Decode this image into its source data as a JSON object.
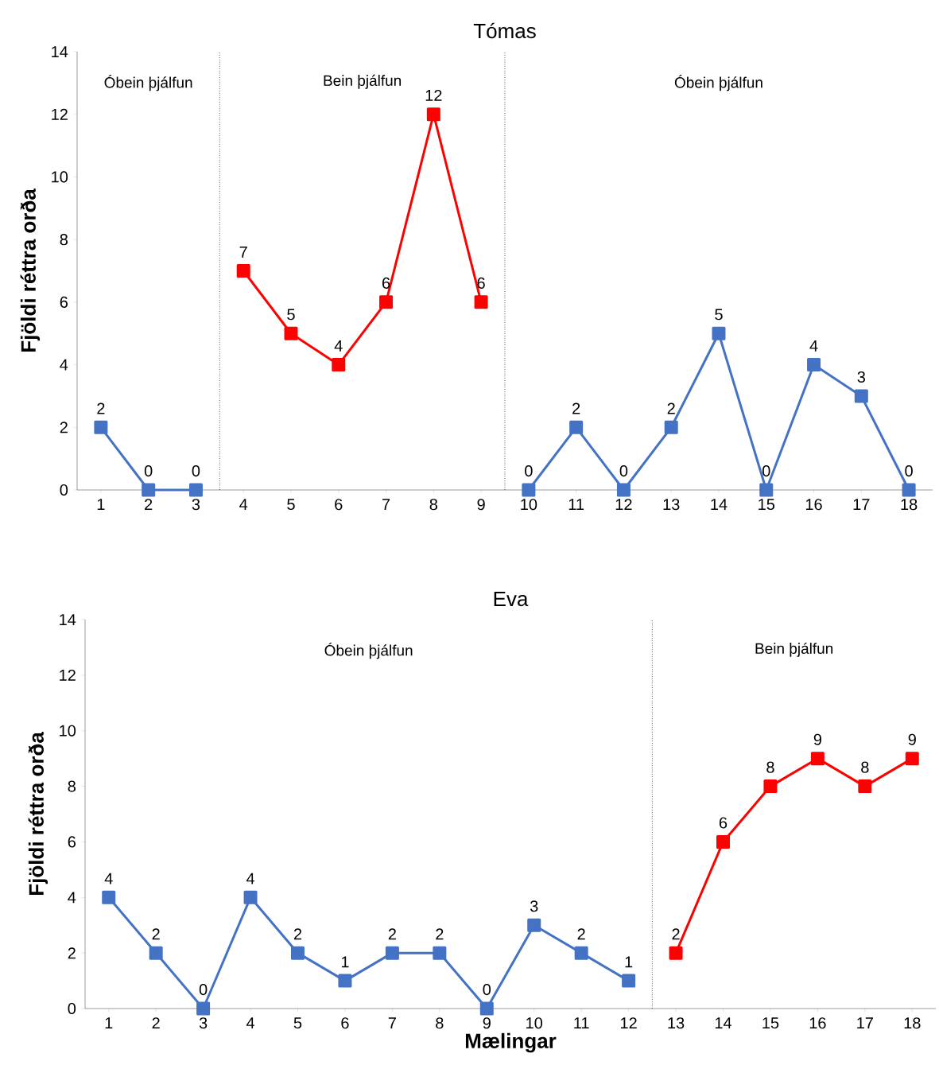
{
  "chart_data": [
    {
      "type": "line",
      "title": "Tómas",
      "ylabel": "Fjöldi réttra orða",
      "x": [
        1,
        2,
        3,
        4,
        5,
        6,
        7,
        8,
        9,
        10,
        11,
        12,
        13,
        14,
        15,
        16,
        17,
        18
      ],
      "series": [
        {
          "color": "#4472c4",
          "values": [
            2,
            0,
            0,
            null,
            null,
            null,
            null,
            null,
            null,
            0,
            2,
            0,
            2,
            5,
            0,
            4,
            3,
            0
          ]
        },
        {
          "color": "#ff0000",
          "values": [
            null,
            null,
            null,
            7,
            5,
            4,
            6,
            12,
            6,
            null,
            null,
            null,
            null,
            null,
            null,
            null,
            null,
            null
          ]
        }
      ],
      "xlim": [
        0.5,
        18.5
      ],
      "xticks": [
        1,
        2,
        3,
        4,
        5,
        6,
        7,
        8,
        9,
        10,
        11,
        12,
        13,
        14,
        15,
        16,
        17,
        18
      ],
      "ylim": [
        0,
        14
      ],
      "yticks": [
        0,
        2,
        4,
        6,
        8,
        10,
        12,
        14
      ],
      "marker": "square",
      "line_style": "solid",
      "data_labels": true,
      "grid": false,
      "ref_lines": [
        {
          "axis": "x",
          "value": 3.5,
          "color": "#000000",
          "line_style": "dotted"
        },
        {
          "axis": "x",
          "value": 9.5,
          "color": "#000000",
          "line_style": "dotted"
        }
      ],
      "annotations": [
        "Óbein þjálfun",
        "Bein þjálfun",
        "Óbein þjálfun"
      ]
    },
    {
      "type": "line",
      "title": "Eva",
      "xlabel": "Mælingar",
      "ylabel": "Fjöldi réttra orða",
      "x": [
        1,
        2,
        3,
        4,
        5,
        6,
        7,
        8,
        9,
        10,
        11,
        12,
        13,
        14,
        15,
        16,
        17,
        18
      ],
      "series": [
        {
          "color": "#4472c4",
          "values": [
            4,
            2,
            0,
            4,
            2,
            1,
            2,
            2,
            0,
            3,
            2,
            1,
            null,
            null,
            null,
            null,
            null,
            null
          ]
        },
        {
          "color": "#ff0000",
          "values": [
            null,
            null,
            null,
            null,
            null,
            null,
            null,
            null,
            null,
            null,
            null,
            null,
            2,
            6,
            8,
            9,
            8,
            9
          ]
        }
      ],
      "xlim": [
        0.5,
        18.5
      ],
      "xticks": [
        1,
        2,
        3,
        4,
        5,
        6,
        7,
        8,
        9,
        10,
        11,
        12,
        13,
        14,
        15,
        16,
        17,
        18
      ],
      "ylim": [
        0,
        14
      ],
      "yticks": [
        0,
        2,
        4,
        6,
        8,
        10,
        12,
        14
      ],
      "marker": "square",
      "line_style": "solid",
      "data_labels": true,
      "grid": false,
      "ref_lines": [
        {
          "axis": "x",
          "value": 12.5,
          "color": "#000000",
          "line_style": "dotted"
        }
      ],
      "annotations": [
        "Óbein þjálfun",
        "Bein þjálfun"
      ]
    }
  ]
}
